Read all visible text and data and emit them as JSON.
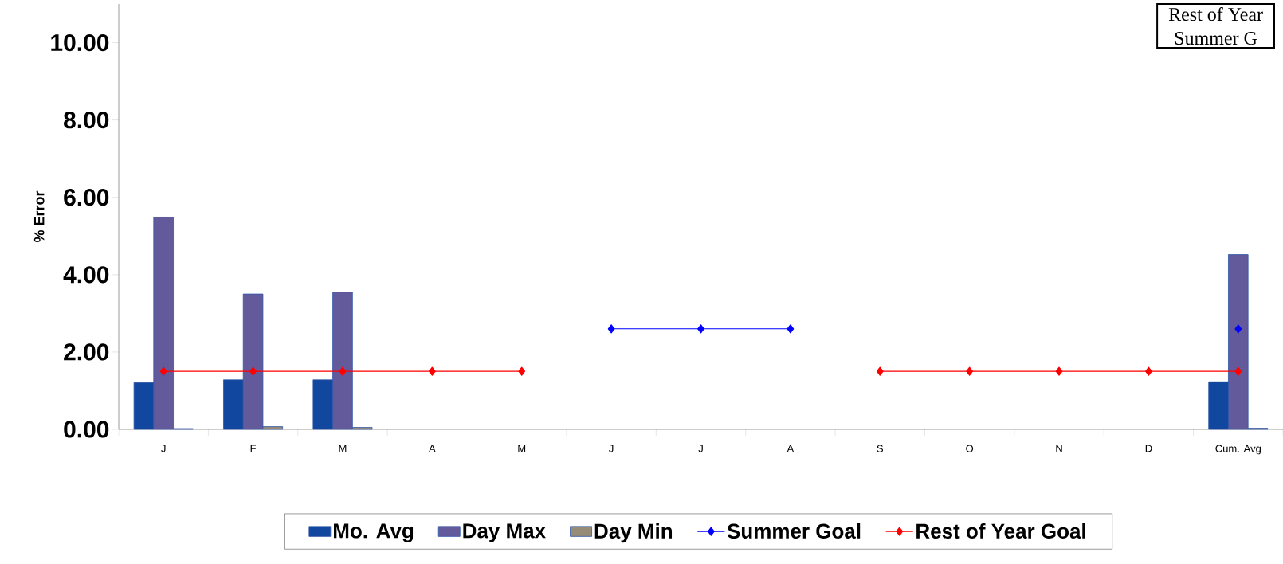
{
  "chart_data": {
    "type": "bar",
    "ylabel": "% Error",
    "categories": [
      "J",
      "F",
      "M",
      "A",
      "M",
      "J",
      "J",
      "A",
      "S",
      "O",
      "N",
      "D",
      "Cum. Avg"
    ],
    "series": [
      {
        "name": "Mo. Avg",
        "color": "#11479e",
        "values": [
          1.21,
          1.28,
          1.28,
          null,
          null,
          null,
          null,
          null,
          null,
          null,
          null,
          null,
          1.23
        ]
      },
      {
        "name": "Day Max",
        "color": "#635a9c",
        "values": [
          5.49,
          3.5,
          3.55,
          null,
          null,
          null,
          null,
          null,
          null,
          null,
          null,
          null,
          4.52
        ]
      },
      {
        "name": "Day Min",
        "color": "#968b77",
        "values": [
          0.02,
          0.07,
          0.05,
          null,
          null,
          null,
          null,
          null,
          null,
          null,
          null,
          null,
          0.03
        ]
      },
      {
        "name": "Summer Goal",
        "type": "line",
        "color": "#0000ff",
        "values": [
          null,
          null,
          null,
          null,
          null,
          2.6,
          2.6,
          2.6,
          null,
          null,
          null,
          null,
          2.6
        ]
      },
      {
        "name": "Rest of Year Goal",
        "type": "line",
        "color": "#ff0000",
        "values": [
          1.5,
          1.5,
          1.5,
          1.5,
          1.5,
          null,
          null,
          null,
          1.5,
          1.5,
          1.5,
          1.5,
          1.5
        ]
      }
    ],
    "ylim": [
      0,
      11
    ],
    "yticks": [
      {
        "value": 0,
        "label": "0.00"
      },
      {
        "value": 2,
        "label": "2.00"
      },
      {
        "value": 4,
        "label": "4.00"
      },
      {
        "value": 6,
        "label": "6.00"
      },
      {
        "value": 8,
        "label": "8.00"
      },
      {
        "value": 10,
        "label": "10.00"
      }
    ],
    "marker": "diamond",
    "line_style": "solid",
    "legend": "bottom",
    "annotations": [
      "Rest of Year",
      "Summer G"
    ]
  }
}
